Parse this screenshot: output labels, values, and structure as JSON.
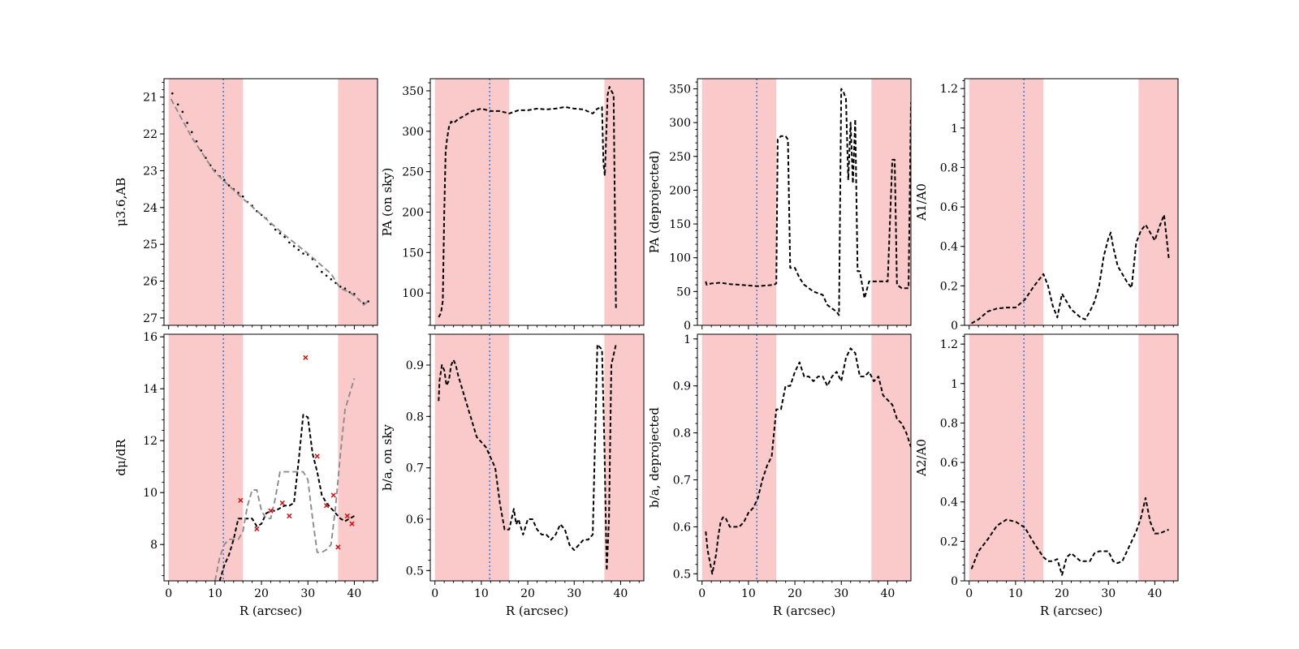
{
  "figure": {
    "xlabel": "R (arcsec)",
    "xlim": [
      -1,
      45
    ],
    "xticks": [
      0,
      10,
      20,
      30,
      40
    ],
    "shaded_regions": [
      [
        0,
        16
      ],
      [
        36.5,
        45
      ]
    ],
    "vline_x": 11.8,
    "colors": {
      "shade": "#f7a7a7",
      "vline": "#3b7fe6",
      "line": "#000000",
      "model": "#8c8c8c",
      "marker": "#e00000"
    }
  },
  "chart_data": [
    {
      "id": "p11",
      "type": "line",
      "ylabel": "μ3.6,AB",
      "ylim": [
        27.2,
        20.5
      ],
      "yticks": [
        21,
        22,
        23,
        24,
        25,
        26,
        27
      ],
      "series": [
        {
          "name": "observed",
          "style": "dots",
          "x": [
            0.8,
            2,
            3,
            4,
            5,
            6,
            7,
            8,
            9,
            10,
            11,
            12,
            13,
            14,
            15,
            16,
            17,
            18,
            19,
            20,
            21,
            22,
            23,
            24,
            25,
            26,
            27,
            28,
            29,
            30,
            31,
            32,
            33,
            34,
            35,
            36,
            37,
            38,
            39,
            40,
            41,
            42,
            43
          ],
          "y": [
            20.9,
            21.2,
            21.4,
            21.7,
            21.95,
            22.2,
            22.45,
            22.65,
            22.85,
            23.0,
            23.15,
            23.25,
            23.4,
            23.5,
            23.6,
            23.7,
            23.85,
            23.95,
            24.1,
            24.2,
            24.3,
            24.45,
            24.6,
            24.7,
            24.8,
            24.95,
            25.05,
            25.15,
            25.25,
            25.28,
            25.4,
            25.6,
            25.75,
            25.85,
            25.95,
            26.05,
            26.15,
            26.2,
            26.3,
            26.35,
            26.5,
            26.6,
            26.55
          ]
        },
        {
          "name": "model",
          "style": "dashed-grey",
          "x": [
            0.5,
            5,
            10,
            15,
            20,
            25,
            30,
            35,
            37,
            39,
            41,
            42,
            43
          ],
          "y": [
            21.05,
            22.1,
            23.05,
            23.65,
            24.2,
            24.75,
            25.25,
            25.8,
            26.2,
            26.3,
            26.5,
            26.65,
            26.55
          ]
        }
      ]
    },
    {
      "id": "p12",
      "type": "line",
      "ylabel": "PA (on sky)",
      "ylim": [
        60,
        365
      ],
      "yticks": [
        100,
        150,
        200,
        250,
        300,
        350
      ],
      "series": [
        {
          "name": "PA",
          "style": "dashed",
          "x": [
            0.8,
            1.3,
            1.7,
            2.0,
            2.3,
            2.6,
            3.0,
            3.5,
            4,
            5,
            6,
            8,
            10,
            12,
            14,
            16,
            18,
            20,
            22,
            24,
            26,
            28,
            30,
            32,
            34,
            35,
            36,
            36.3,
            36.6,
            37.2,
            37.6,
            38.0,
            38.5,
            39.0
          ],
          "y": [
            70,
            75,
            90,
            200,
            275,
            290,
            305,
            312,
            310,
            315,
            318,
            325,
            328,
            325,
            325,
            322,
            326,
            326,
            328,
            327,
            328,
            330,
            328,
            327,
            322,
            328,
            330,
            260,
            245,
            345,
            355,
            350,
            345,
            80
          ]
        }
      ]
    },
    {
      "id": "p13",
      "type": "line",
      "ylabel": "PA (deprojected)",
      "ylim": [
        0,
        365
      ],
      "yticks": [
        0,
        50,
        100,
        150,
        200,
        250,
        300,
        350
      ],
      "series": [
        {
          "name": "PA_deproj",
          "style": "dashed",
          "x": [
            0.8,
            1,
            2,
            4,
            6,
            8,
            10,
            12,
            14,
            15.5,
            16,
            16.3,
            17,
            18,
            18.5,
            19,
            20,
            21,
            22,
            24,
            26,
            27,
            28,
            29,
            29.5,
            30,
            30.5,
            31,
            31.5,
            32,
            32.5,
            33,
            33.5,
            34,
            35,
            36,
            37,
            38,
            40,
            41,
            41.5,
            42,
            43,
            44.5,
            45
          ],
          "y": [
            65,
            60,
            62,
            63,
            61,
            60,
            59,
            58,
            59,
            60,
            62,
            275,
            280,
            280,
            275,
            85,
            85,
            70,
            60,
            50,
            45,
            30,
            25,
            20,
            15,
            350,
            345,
            335,
            215,
            300,
            210,
            305,
            80,
            80,
            40,
            65,
            65,
            65,
            65,
            245,
            245,
            60,
            55,
            55,
            330
          ]
        }
      ]
    },
    {
      "id": "p14",
      "type": "line",
      "ylabel": "A1/A0",
      "ylim": [
        0,
        1.25
      ],
      "yticks": [
        0.0,
        0.2,
        0.4,
        0.6,
        0.8,
        1.0,
        1.2
      ],
      "series": [
        {
          "name": "A1/A0",
          "style": "dashed",
          "x": [
            0.5,
            2,
            4,
            6,
            8,
            10,
            12,
            14,
            16,
            17,
            18,
            19,
            20,
            22,
            24,
            25,
            26,
            27,
            28,
            29,
            30,
            30.5,
            31,
            32,
            34,
            35,
            36,
            37,
            38,
            39,
            40,
            41,
            42,
            43
          ],
          "y": [
            0.01,
            0.03,
            0.07,
            0.085,
            0.09,
            0.09,
            0.13,
            0.2,
            0.26,
            0.2,
            0.1,
            0.04,
            0.16,
            0.08,
            0.04,
            0.03,
            0.07,
            0.12,
            0.2,
            0.35,
            0.44,
            0.47,
            0.4,
            0.3,
            0.22,
            0.19,
            0.42,
            0.48,
            0.51,
            0.47,
            0.43,
            0.5,
            0.56,
            0.34
          ]
        }
      ]
    },
    {
      "id": "p21",
      "type": "line",
      "ylabel": "dμ/dR",
      "ylim": [
        6.6,
        16.1
      ],
      "yticks": [
        8,
        10,
        12,
        14,
        16
      ],
      "series": [
        {
          "name": "derivative",
          "style": "dashed",
          "x": [
            11,
            12,
            13,
            14,
            15,
            16,
            17,
            18,
            19,
            20,
            21,
            22,
            23,
            24,
            25,
            26,
            27,
            28,
            29,
            30,
            31,
            32,
            33,
            34,
            35,
            36,
            37,
            38,
            39,
            40
          ],
          "y": [
            6.6,
            7.2,
            7.6,
            8.2,
            9.0,
            9.0,
            9.0,
            9.0,
            8.7,
            8.8,
            9.2,
            9.3,
            9.3,
            9.4,
            9.5,
            9.5,
            9.6,
            11.2,
            13.0,
            12.9,
            11.5,
            10.8,
            9.9,
            9.6,
            9.4,
            9.2,
            9.0,
            8.9,
            9.0,
            9.1
          ]
        },
        {
          "name": "model derivative",
          "style": "dashed-grey",
          "x": [
            10,
            11,
            12,
            13,
            14,
            15,
            16,
            17,
            18,
            19,
            20,
            21,
            22,
            23,
            24,
            25,
            26,
            27,
            28,
            29,
            30,
            31,
            32,
            33,
            34,
            35,
            36,
            37,
            38,
            39,
            40
          ],
          "y": [
            6.6,
            7.5,
            8.0,
            8.2,
            8.2,
            8.2,
            8.5,
            9.5,
            10.1,
            10.1,
            9.3,
            9.0,
            9.0,
            9.8,
            10.8,
            10.8,
            10.8,
            10.8,
            10.8,
            10.8,
            10.5,
            9.0,
            7.7,
            7.7,
            7.8,
            8.0,
            9.5,
            11.5,
            13.2,
            13.8,
            14.4
          ]
        },
        {
          "name": "samples",
          "style": "markers-red",
          "x": [
            15.5,
            19,
            22,
            24.5,
            26,
            29.5,
            32,
            34,
            35.5,
            36.5,
            38.5,
            39.5
          ],
          "y": [
            9.7,
            8.6,
            9.3,
            9.6,
            9.1,
            15.2,
            11.4,
            9.5,
            9.9,
            7.9,
            9.1,
            8.8
          ]
        }
      ]
    },
    {
      "id": "p22",
      "type": "line",
      "ylabel": "b/a, on sky",
      "ylim": [
        0.48,
        0.96
      ],
      "yticks": [
        0.5,
        0.6,
        0.7,
        0.8,
        0.9
      ],
      "series": [
        {
          "name": "b/a",
          "style": "dashed",
          "x": [
            0.8,
            1,
            1.5,
            2,
            2.5,
            3,
            3.5,
            4,
            4.5,
            5,
            6,
            7,
            8,
            9,
            10,
            11,
            12,
            13,
            14,
            15,
            16,
            17,
            17.5,
            18,
            19,
            20,
            21,
            22,
            23,
            24,
            25,
            26,
            27,
            28,
            29,
            30,
            31,
            32,
            33,
            34,
            35,
            36,
            36.5,
            37,
            37.5,
            38,
            38.5,
            39
          ],
          "y": [
            0.83,
            0.87,
            0.9,
            0.89,
            0.86,
            0.87,
            0.9,
            0.91,
            0.9,
            0.88,
            0.85,
            0.82,
            0.79,
            0.76,
            0.75,
            0.74,
            0.72,
            0.7,
            0.63,
            0.58,
            0.58,
            0.62,
            0.59,
            0.6,
            0.57,
            0.6,
            0.6,
            0.58,
            0.57,
            0.57,
            0.56,
            0.57,
            0.59,
            0.58,
            0.55,
            0.54,
            0.55,
            0.56,
            0.56,
            0.57,
            0.94,
            0.93,
            0.75,
            0.5,
            0.6,
            0.9,
            0.92,
            0.94
          ]
        }
      ]
    },
    {
      "id": "p23",
      "type": "line",
      "ylabel": "b/a, deprojected",
      "ylim": [
        0.485,
        1.01
      ],
      "yticks": [
        0.5,
        0.6,
        0.7,
        0.8,
        0.9,
        1.0
      ],
      "series": [
        {
          "name": "b/a_deproj",
          "style": "dashed",
          "x": [
            0.8,
            1.2,
            1.8,
            2.2,
            2.6,
            3,
            3.5,
            4,
            4.5,
            5,
            6,
            7,
            8,
            9,
            10,
            11,
            12,
            13,
            14,
            15,
            16,
            17,
            18,
            19,
            20,
            21,
            22,
            23,
            24,
            25,
            26,
            27,
            28,
            29,
            30,
            31,
            32,
            33,
            34,
            35,
            36,
            37,
            38,
            39,
            40,
            41,
            42,
            43,
            44,
            45
          ],
          "y": [
            0.59,
            0.55,
            0.52,
            0.5,
            0.52,
            0.54,
            0.58,
            0.61,
            0.62,
            0.62,
            0.6,
            0.6,
            0.6,
            0.61,
            0.63,
            0.64,
            0.66,
            0.7,
            0.73,
            0.75,
            0.85,
            0.85,
            0.9,
            0.9,
            0.93,
            0.95,
            0.92,
            0.92,
            0.91,
            0.92,
            0.92,
            0.9,
            0.92,
            0.93,
            0.91,
            0.96,
            0.98,
            0.97,
            0.92,
            0.92,
            0.93,
            0.91,
            0.92,
            0.88,
            0.87,
            0.86,
            0.83,
            0.82,
            0.8,
            0.77
          ]
        }
      ]
    },
    {
      "id": "p24",
      "type": "line",
      "ylabel": "A2/A0",
      "ylim": [
        0,
        1.25
      ],
      "yticks": [
        0.0,
        0.2,
        0.4,
        0.6,
        0.8,
        1.0,
        1.2
      ],
      "series": [
        {
          "name": "A2/A0",
          "style": "dashed",
          "x": [
            0.5,
            2,
            4,
            6,
            8,
            10,
            12,
            14,
            16,
            17,
            18,
            19,
            20,
            21,
            22,
            24,
            25,
            26,
            27,
            28,
            29,
            30,
            31,
            32,
            33,
            34,
            35,
            36,
            37,
            38,
            39,
            40,
            41,
            42,
            43
          ],
          "y": [
            0.06,
            0.15,
            0.21,
            0.28,
            0.31,
            0.3,
            0.27,
            0.19,
            0.12,
            0.1,
            0.1,
            0.11,
            0.03,
            0.12,
            0.14,
            0.1,
            0.1,
            0.1,
            0.14,
            0.15,
            0.15,
            0.15,
            0.1,
            0.09,
            0.1,
            0.15,
            0.2,
            0.25,
            0.32,
            0.42,
            0.3,
            0.24,
            0.24,
            0.25,
            0.26
          ]
        }
      ]
    }
  ]
}
